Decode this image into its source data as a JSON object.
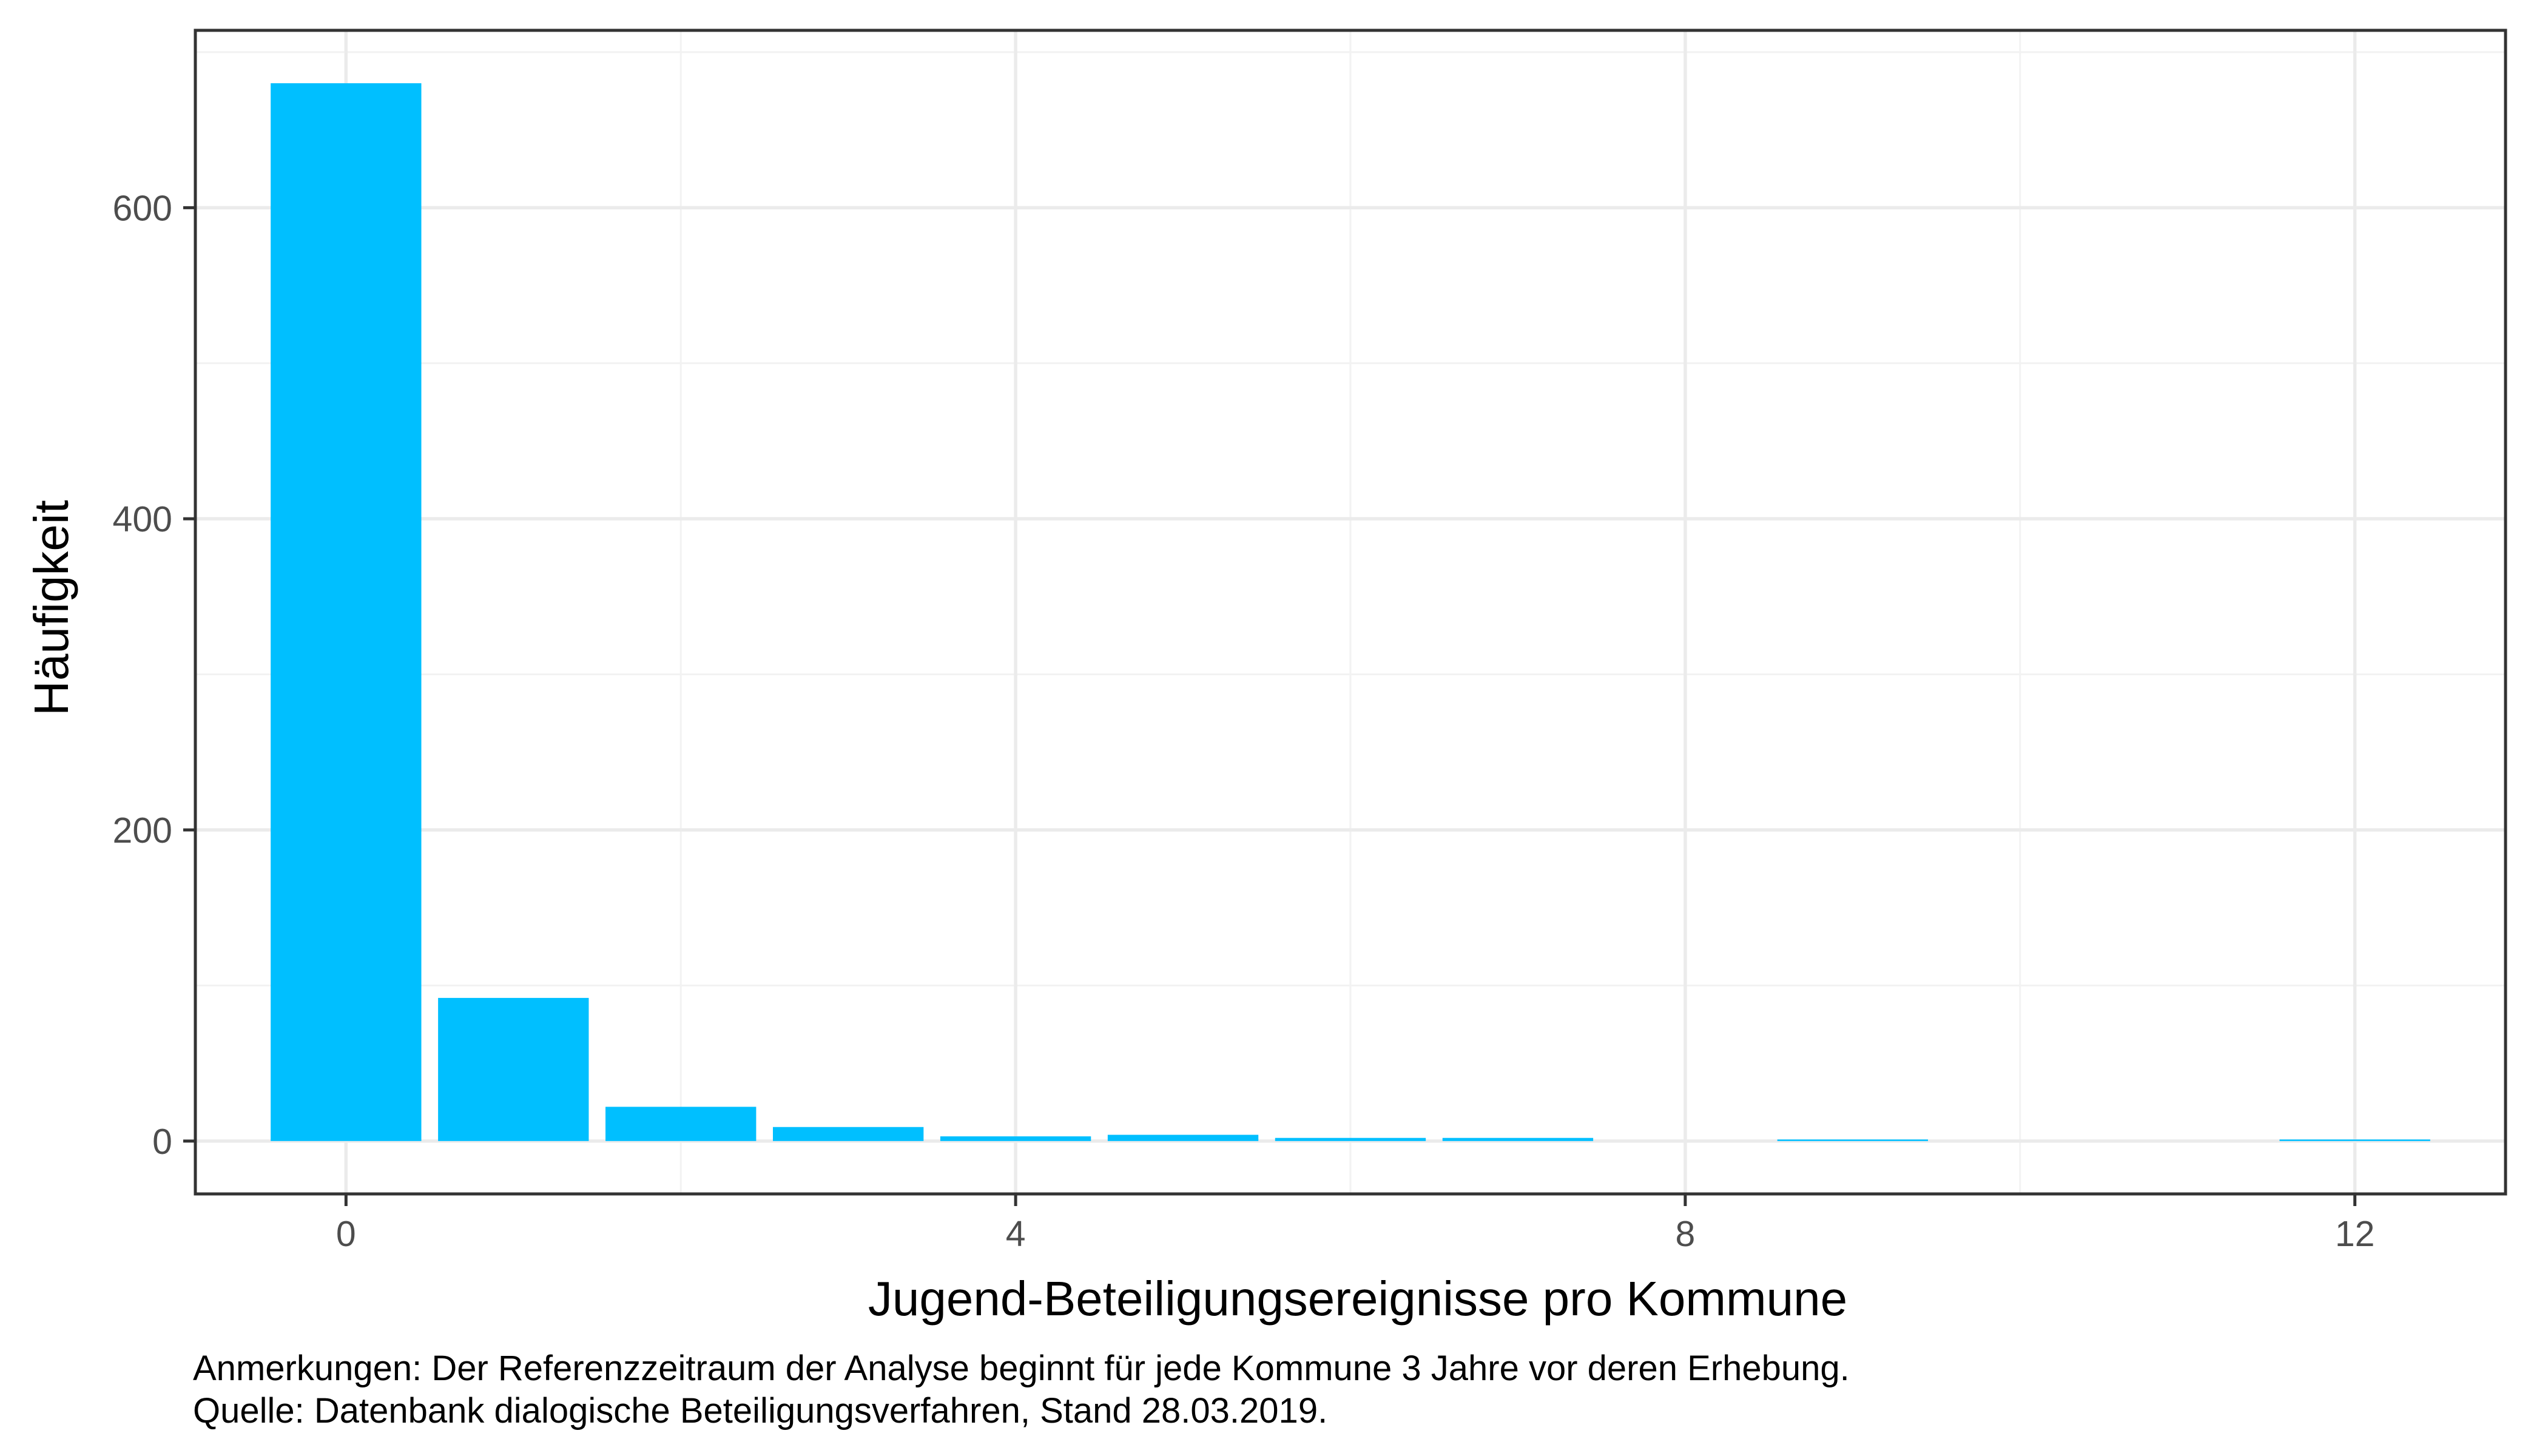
{
  "chart_data": {
    "type": "bar",
    "title": "",
    "xlabel": "Jugend-Beteiligungsereignisse pro Kommune",
    "ylabel": "Häufigkeit",
    "x": [
      0,
      1,
      2,
      3,
      4,
      5,
      6,
      7,
      8,
      9,
      10,
      11,
      12
    ],
    "values": [
      680,
      92,
      22,
      9,
      3,
      4,
      2,
      2,
      0,
      1,
      0,
      0,
      1
    ],
    "xlim": [
      -0.9,
      12.9
    ],
    "ylim": [
      -34,
      714
    ],
    "x_ticks": [
      0,
      4,
      8,
      12
    ],
    "y_ticks": [
      0,
      200,
      400,
      600
    ],
    "x_tick_labels": [
      "0",
      "4",
      "8",
      "12"
    ],
    "y_tick_labels": [
      "0",
      "200",
      "400",
      "600"
    ],
    "x_minor_ticks": [
      2,
      6,
      10
    ],
    "y_minor_ticks": [
      100,
      300,
      500,
      700
    ],
    "bar_width": 0.9,
    "grid": true,
    "legend": "none",
    "bar_color": "#00BFFF"
  },
  "caption": {
    "line1": "Anmerkungen: Der Referenzzeitraum der Analyse beginnt für jede Kommune 3 Jahre vor deren Erhebung.",
    "line2": "Quelle: Datenbank dialogische Beteiligungsverfahren, Stand 28.03.2019."
  }
}
